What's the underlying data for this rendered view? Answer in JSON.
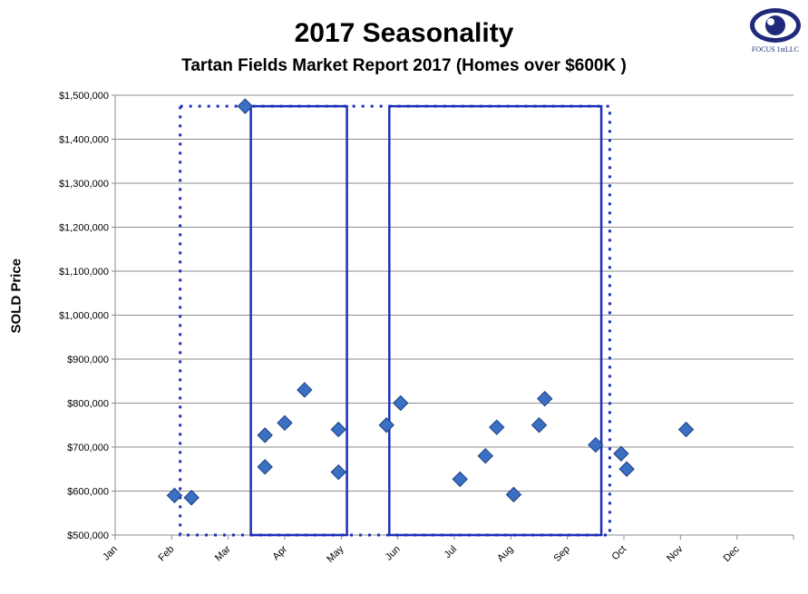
{
  "chart_data": {
    "type": "scatter",
    "title": "2017 Seasonality",
    "subtitle": "Tartan Fields Market Report 2017 (Homes over $600K )",
    "ylabel": "SOLD Price",
    "xlabel": "",
    "ylim": [
      500000,
      1500000
    ],
    "xlim": [
      0,
      12
    ],
    "y_ticks": [
      "$500,000",
      "$600,000",
      "$700,000",
      "$800,000",
      "$900,000",
      "$1,000,000",
      "$1,100,000",
      "$1,200,000",
      "$1,300,000",
      "$1,400,000",
      "$1,500,000"
    ],
    "x_tick_labels": [
      "Jan",
      "Feb",
      "Mar",
      "Apr",
      "May",
      "Jun",
      "Jul",
      "Aug",
      "Sep",
      "Oct",
      "Nov",
      "Dec"
    ],
    "grid": "horizontal",
    "marker": "diamond",
    "marker_color": "#3a6fc4",
    "box_color": "#1c2fb8",
    "points": [
      {
        "x": 1.05,
        "y": 590000
      },
      {
        "x": 1.35,
        "y": 585000
      },
      {
        "x": 2.3,
        "y": 1475000
      },
      {
        "x": 2.65,
        "y": 727000
      },
      {
        "x": 2.65,
        "y": 655000
      },
      {
        "x": 3.0,
        "y": 755000
      },
      {
        "x": 3.35,
        "y": 830000
      },
      {
        "x": 3.95,
        "y": 740000
      },
      {
        "x": 3.95,
        "y": 643000
      },
      {
        "x": 4.8,
        "y": 750000
      },
      {
        "x": 5.05,
        "y": 800000
      },
      {
        "x": 6.1,
        "y": 627000
      },
      {
        "x": 6.55,
        "y": 680000
      },
      {
        "x": 6.75,
        "y": 745000
      },
      {
        "x": 7.05,
        "y": 592000
      },
      {
        "x": 7.5,
        "y": 750000
      },
      {
        "x": 7.6,
        "y": 810000
      },
      {
        "x": 8.5,
        "y": 705000
      },
      {
        "x": 8.95,
        "y": 685000
      },
      {
        "x": 9.05,
        "y": 650000
      },
      {
        "x": 10.1,
        "y": 740000
      }
    ],
    "solid_boxes": [
      {
        "x_start": 2.4,
        "x_end": 4.1,
        "y_start": 500000,
        "y_end": 1475000
      },
      {
        "x_start": 4.85,
        "x_end": 8.6,
        "y_start": 500000,
        "y_end": 1475000
      }
    ],
    "dotted_boxes": [
      {
        "x_start": 1.15,
        "x_end": 8.75,
        "y_start": 500000,
        "y_end": 1475000
      }
    ]
  },
  "logo": {
    "text": "FOCUS 1stLLC",
    "color": "#1f2a7a"
  }
}
